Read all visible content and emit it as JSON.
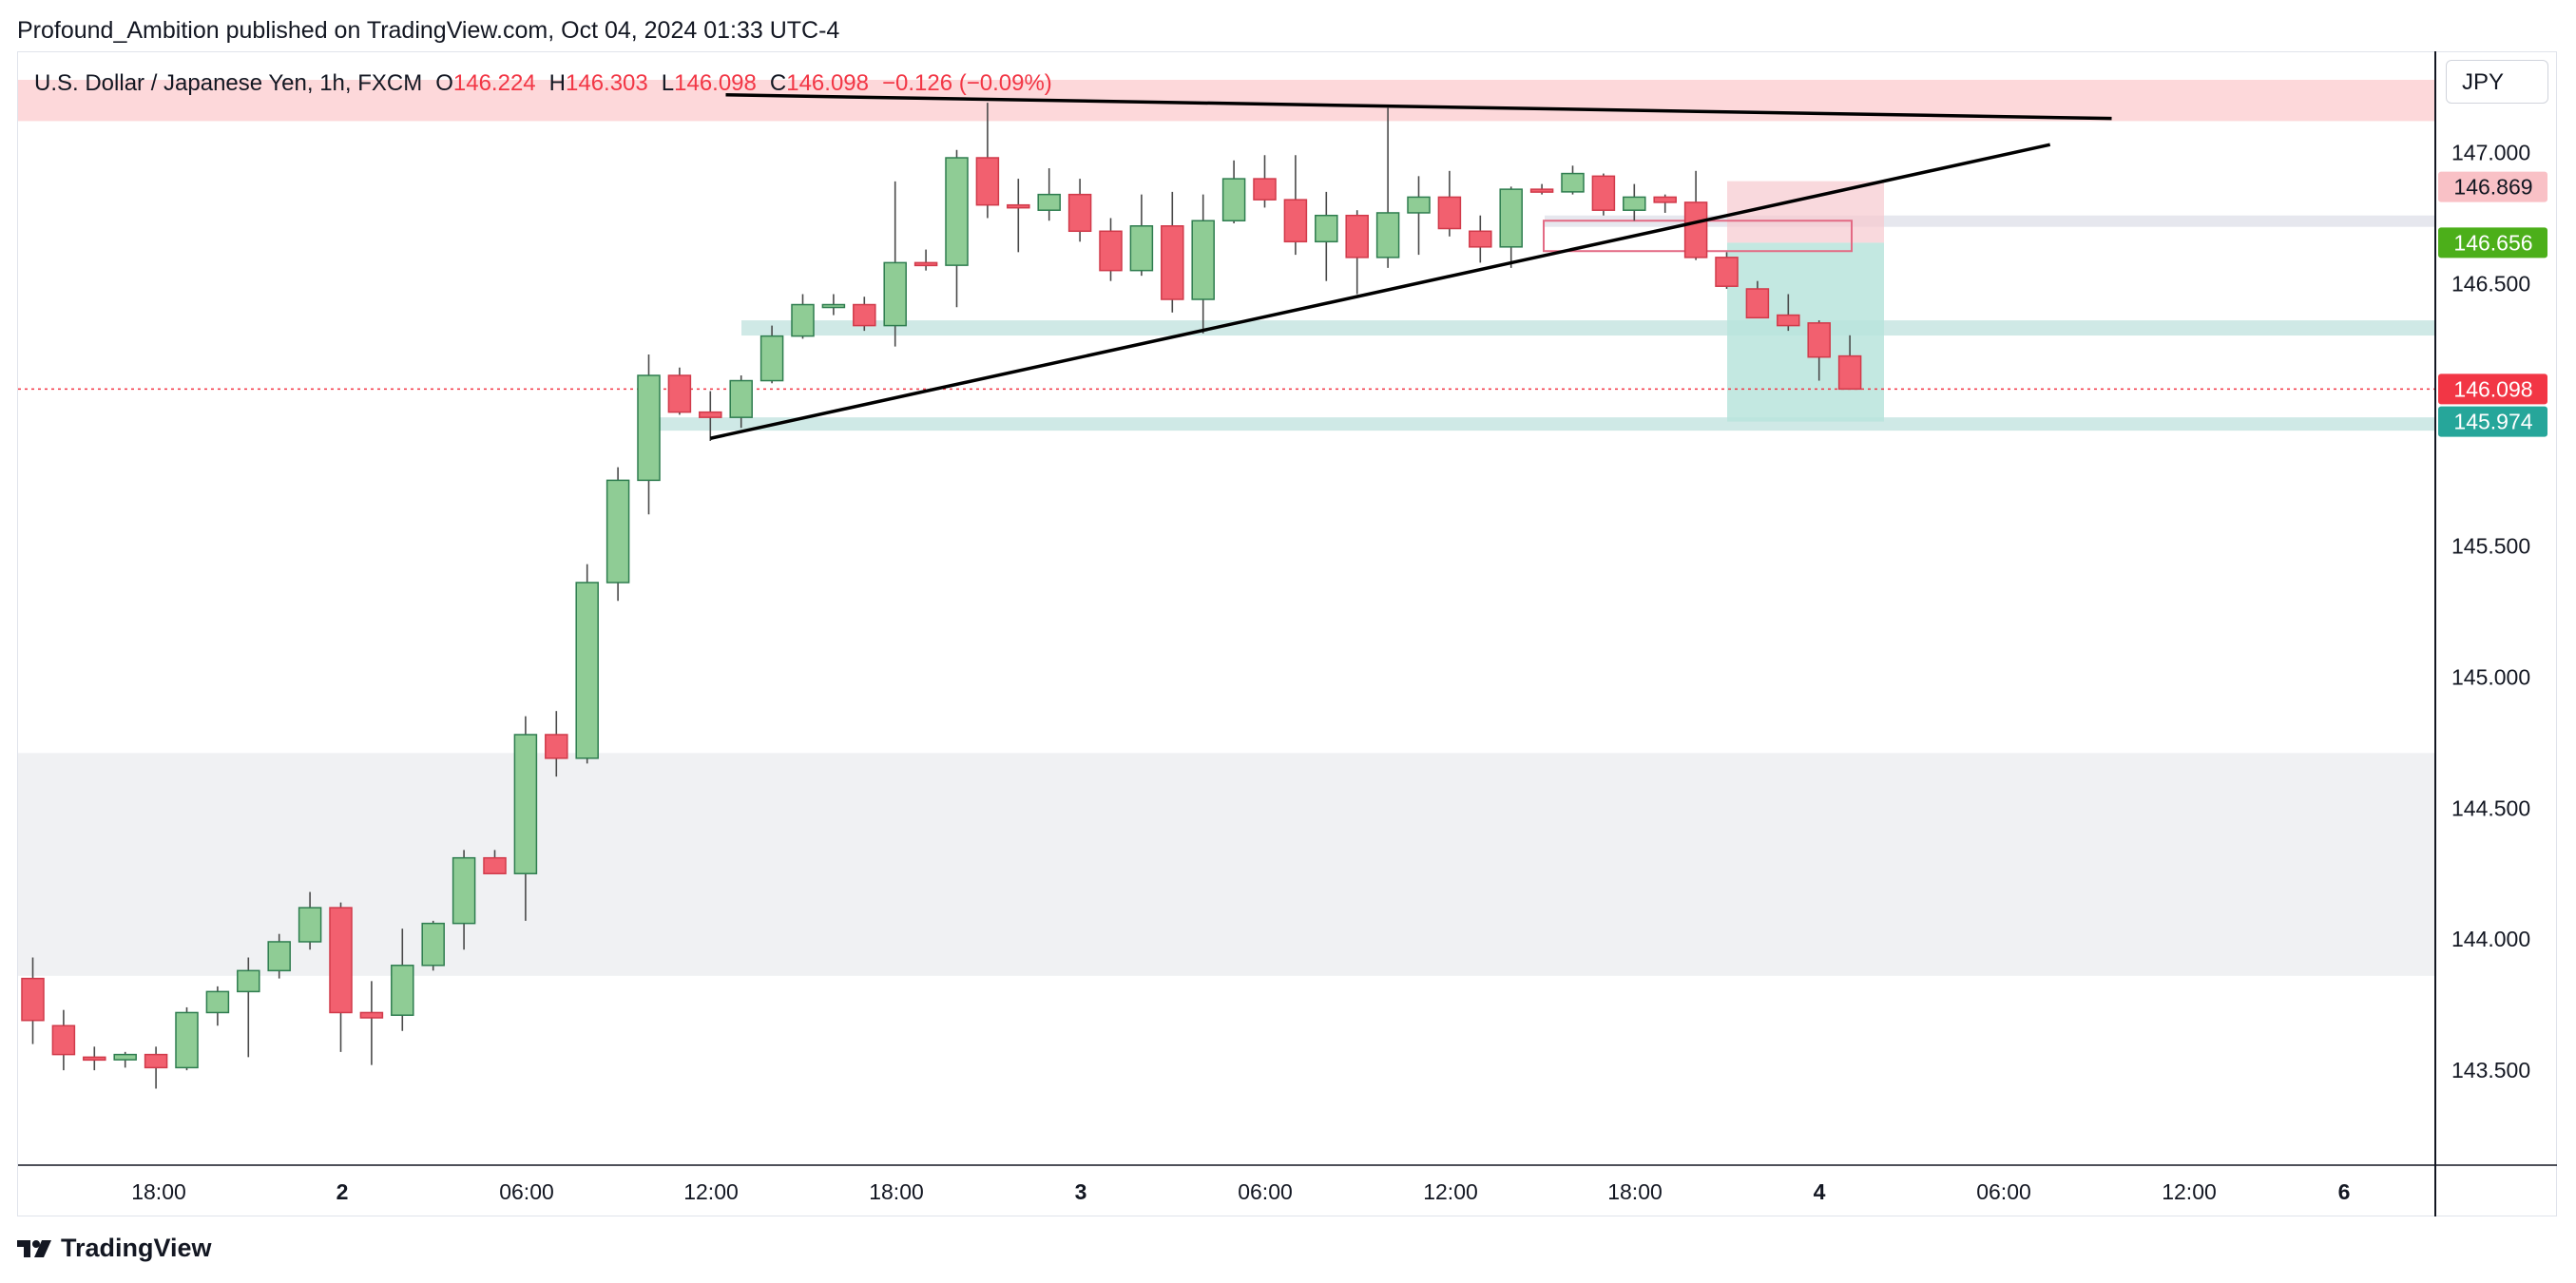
{
  "publisher": "Profound_Ambition published on TradingView.com, Oct 04, 2024 01:33 UTC-4",
  "legend": {
    "symbol": "U.S. Dollar / Japanese Yen, 1h, FXCM",
    "o_label": "O",
    "o": "146.224",
    "h_label": "H",
    "h": "146.303",
    "l_label": "L",
    "l": "146.098",
    "c_label": "C",
    "c": "146.098",
    "change": "−0.126 (−0.09%)"
  },
  "currency_button": "JPY",
  "footer_logo": "TradingView",
  "colors": {
    "up": "#8fcc95",
    "up_border": "#2e7d4f",
    "down": "#f2606f",
    "down_border": "#d13a4a",
    "zone_red": "#fdd8da",
    "zone_gray": "#f0f1f3",
    "teal": "#26a69a",
    "red_label": "#f23645",
    "green_label": "#4caf1a"
  },
  "chart_data": {
    "type": "candlestick",
    "symbol": "U.S. Dollar / Japanese Yen",
    "interval": "1h",
    "ylim": [
      143.2,
      147.3
    ],
    "y_ticks": [
      "143.500",
      "144.000",
      "144.500",
      "145.000",
      "145.500",
      "146.000",
      "146.500",
      "147.000"
    ],
    "x_ticks": [
      "18:00",
      "2",
      "06:00",
      "12:00",
      "18:00",
      "3",
      "06:00",
      "12:00",
      "18:00",
      "4",
      "06:00",
      "12:00",
      "6"
    ],
    "x_bold_ticks": [
      "2",
      "3",
      "4",
      "6"
    ],
    "candles": [
      {
        "o": 143.85,
        "h": 143.93,
        "l": 143.6,
        "c": 143.69
      },
      {
        "o": 143.67,
        "h": 143.73,
        "l": 143.5,
        "c": 143.56
      },
      {
        "o": 143.55,
        "h": 143.59,
        "l": 143.5,
        "c": 143.54
      },
      {
        "o": 143.54,
        "h": 143.57,
        "l": 143.51,
        "c": 143.56
      },
      {
        "o": 143.56,
        "h": 143.59,
        "l": 143.43,
        "c": 143.51
      },
      {
        "o": 143.51,
        "h": 143.74,
        "l": 143.5,
        "c": 143.72
      },
      {
        "o": 143.72,
        "h": 143.82,
        "l": 143.67,
        "c": 143.8
      },
      {
        "o": 143.8,
        "h": 143.93,
        "l": 143.55,
        "c": 143.88
      },
      {
        "o": 143.88,
        "h": 144.02,
        "l": 143.85,
        "c": 143.99
      },
      {
        "o": 143.99,
        "h": 144.18,
        "l": 143.96,
        "c": 144.12
      },
      {
        "o": 144.12,
        "h": 144.14,
        "l": 143.57,
        "c": 143.72
      },
      {
        "o": 143.72,
        "h": 143.84,
        "l": 143.52,
        "c": 143.7
      },
      {
        "o": 143.71,
        "h": 144.04,
        "l": 143.65,
        "c": 143.9
      },
      {
        "o": 143.9,
        "h": 144.07,
        "l": 143.88,
        "c": 144.06
      },
      {
        "o": 144.06,
        "h": 144.34,
        "l": 143.96,
        "c": 144.31
      },
      {
        "o": 144.31,
        "h": 144.34,
        "l": 144.25,
        "c": 144.25
      },
      {
        "o": 144.25,
        "h": 144.85,
        "l": 144.07,
        "c": 144.78
      },
      {
        "o": 144.78,
        "h": 144.87,
        "l": 144.62,
        "c": 144.69
      },
      {
        "o": 144.69,
        "h": 145.43,
        "l": 144.67,
        "c": 145.36
      },
      {
        "o": 145.36,
        "h": 145.8,
        "l": 145.29,
        "c": 145.75
      },
      {
        "o": 145.75,
        "h": 146.23,
        "l": 145.62,
        "c": 146.15
      },
      {
        "o": 146.15,
        "h": 146.18,
        "l": 146.0,
        "c": 146.01
      },
      {
        "o": 146.01,
        "h": 146.09,
        "l": 145.9,
        "c": 145.99
      },
      {
        "o": 145.99,
        "h": 146.15,
        "l": 145.95,
        "c": 146.13
      },
      {
        "o": 146.13,
        "h": 146.34,
        "l": 146.12,
        "c": 146.3
      },
      {
        "o": 146.3,
        "h": 146.46,
        "l": 146.29,
        "c": 146.42
      },
      {
        "o": 146.42,
        "h": 146.46,
        "l": 146.38,
        "c": 146.42
      },
      {
        "o": 146.42,
        "h": 146.45,
        "l": 146.32,
        "c": 146.34
      },
      {
        "o": 146.34,
        "h": 146.89,
        "l": 146.26,
        "c": 146.58
      },
      {
        "o": 146.58,
        "h": 146.63,
        "l": 146.55,
        "c": 146.57
      },
      {
        "o": 146.57,
        "h": 147.01,
        "l": 146.41,
        "c": 146.98
      },
      {
        "o": 146.98,
        "h": 147.19,
        "l": 146.75,
        "c": 146.8
      },
      {
        "o": 146.8,
        "h": 146.9,
        "l": 146.62,
        "c": 146.79
      },
      {
        "o": 146.78,
        "h": 146.94,
        "l": 146.74,
        "c": 146.84
      },
      {
        "o": 146.84,
        "h": 146.9,
        "l": 146.66,
        "c": 146.7
      },
      {
        "o": 146.7,
        "h": 146.75,
        "l": 146.51,
        "c": 146.55
      },
      {
        "o": 146.55,
        "h": 146.84,
        "l": 146.53,
        "c": 146.72
      },
      {
        "o": 146.72,
        "h": 146.85,
        "l": 146.39,
        "c": 146.44
      },
      {
        "o": 146.44,
        "h": 146.84,
        "l": 146.31,
        "c": 146.74
      },
      {
        "o": 146.74,
        "h": 146.97,
        "l": 146.73,
        "c": 146.9
      },
      {
        "o": 146.9,
        "h": 146.99,
        "l": 146.79,
        "c": 146.82
      },
      {
        "o": 146.82,
        "h": 146.99,
        "l": 146.61,
        "c": 146.66
      },
      {
        "o": 146.66,
        "h": 146.85,
        "l": 146.51,
        "c": 146.76
      },
      {
        "o": 146.76,
        "h": 146.78,
        "l": 146.46,
        "c": 146.6
      },
      {
        "o": 146.6,
        "h": 147.17,
        "l": 146.56,
        "c": 146.77
      },
      {
        "o": 146.77,
        "h": 146.91,
        "l": 146.61,
        "c": 146.83
      },
      {
        "o": 146.83,
        "h": 146.93,
        "l": 146.68,
        "c": 146.71
      },
      {
        "o": 146.7,
        "h": 146.76,
        "l": 146.58,
        "c": 146.64
      },
      {
        "o": 146.64,
        "h": 146.87,
        "l": 146.56,
        "c": 146.86
      },
      {
        "o": 146.86,
        "h": 146.88,
        "l": 146.84,
        "c": 146.85
      },
      {
        "o": 146.85,
        "h": 146.95,
        "l": 146.84,
        "c": 146.92
      },
      {
        "o": 146.91,
        "h": 146.92,
        "l": 146.76,
        "c": 146.78
      },
      {
        "o": 146.78,
        "h": 146.88,
        "l": 146.74,
        "c": 146.83
      },
      {
        "o": 146.83,
        "h": 146.84,
        "l": 146.77,
        "c": 146.81
      },
      {
        "o": 146.81,
        "h": 146.93,
        "l": 146.59,
        "c": 146.6
      },
      {
        "o": 146.6,
        "h": 146.62,
        "l": 146.48,
        "c": 146.49
      },
      {
        "o": 146.48,
        "h": 146.51,
        "l": 146.37,
        "c": 146.37
      },
      {
        "o": 146.38,
        "h": 146.46,
        "l": 146.32,
        "c": 146.34
      },
      {
        "o": 146.35,
        "h": 146.36,
        "l": 146.13,
        "c": 146.22
      },
      {
        "o": 146.224,
        "h": 146.303,
        "l": 146.098,
        "c": 146.098
      }
    ],
    "price_labels": [
      {
        "value": 146.869,
        "text": "146.869",
        "kind": "stop"
      },
      {
        "value": 146.656,
        "text": "146.656",
        "kind": "entry"
      },
      {
        "value": 146.098,
        "text": "146.098",
        "kind": "last"
      },
      {
        "value": 145.974,
        "text": "145.974",
        "kind": "target"
      }
    ],
    "zones": [
      {
        "kind": "resistance",
        "from": 147.12,
        "to": 147.34
      },
      {
        "kind": "demand",
        "from": 143.86,
        "to": 144.71
      }
    ],
    "trendlines": [
      {
        "from": {
          "bar": 22.5,
          "price": 147.22
        },
        "to": {
          "bar": 67.5,
          "price": 147.13
        }
      },
      {
        "from": {
          "bar": 22.0,
          "price": 145.91
        },
        "to": {
          "bar": 65.5,
          "price": 147.03
        }
      }
    ]
  }
}
